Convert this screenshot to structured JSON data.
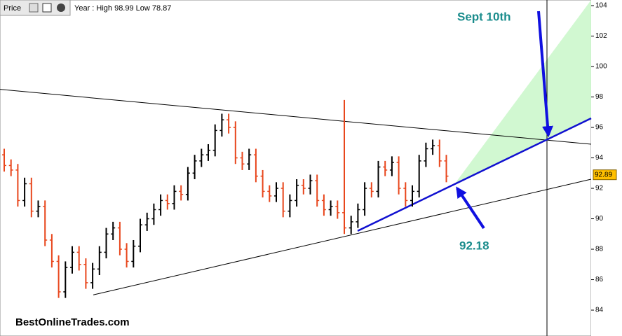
{
  "chart_data": {
    "type": "ohlc",
    "panel_label": "Price",
    "header": "Year : High 98.99 Low 78.87",
    "watermark": "BestOnlineTrades.com",
    "ylim": [
      82.3,
      104.37
    ],
    "yticks": [
      84,
      86,
      88,
      90,
      92,
      94,
      96,
      98,
      100,
      102,
      104
    ],
    "up_color": "#000000",
    "down_color": "#e8461c",
    "open": [
      94.2,
      93.5,
      93.2,
      91.2,
      92.3,
      90.5,
      90.8,
      88.6,
      87.2,
      85.2,
      86.8,
      87.8,
      87.0,
      85.8,
      86.7,
      87.8,
      89.0,
      89.4,
      88.0,
      87.2,
      88.2,
      89.6,
      90.0,
      90.6,
      91.2,
      91.0,
      91.8,
      91.6,
      93.0,
      93.8,
      94.2,
      94.5,
      95.8,
      96.5,
      96.0,
      94.0,
      93.6,
      94.2,
      92.8,
      91.8,
      91.5,
      92.0,
      90.5,
      91.2,
      92.2,
      92.0,
      92.5,
      91.2,
      90.6,
      90.8,
      90.4,
      89.4,
      89.8,
      90.6,
      92.0,
      91.8,
      93.4,
      93.2,
      93.7,
      92.0,
      91.2,
      91.8,
      93.8,
      94.6,
      94.8,
      93.8
    ],
    "high": [
      94.6,
      93.9,
      93.6,
      92.7,
      92.7,
      91.2,
      91.2,
      89.0,
      87.6,
      87.2,
      88.2,
      88.2,
      87.4,
      87.1,
      88.2,
      89.4,
      89.8,
      89.8,
      88.4,
      88.6,
      90.0,
      90.4,
      91.0,
      91.6,
      91.6,
      92.2,
      92.2,
      93.4,
      94.2,
      94.6,
      94.9,
      96.2,
      96.9,
      96.9,
      96.4,
      94.4,
      94.6,
      94.6,
      93.2,
      92.2,
      92.4,
      92.4,
      91.6,
      92.6,
      92.6,
      92.9,
      92.9,
      91.6,
      91.2,
      91.2,
      97.8,
      90.2,
      91.0,
      92.4,
      92.4,
      93.8,
      93.8,
      94.1,
      94.1,
      92.4,
      92.2,
      94.2,
      95.0,
      95.2,
      95.2,
      94.2
    ],
    "low": [
      93.1,
      92.8,
      90.8,
      90.8,
      90.1,
      90.1,
      88.2,
      86.8,
      84.8,
      84.8,
      86.4,
      86.6,
      85.4,
      85.4,
      86.3,
      87.4,
      88.6,
      87.6,
      86.8,
      86.8,
      87.8,
      89.2,
      89.6,
      90.2,
      90.6,
      90.6,
      91.2,
      91.2,
      92.6,
      93.4,
      93.8,
      94.1,
      95.4,
      95.6,
      93.6,
      93.2,
      93.2,
      92.4,
      91.4,
      91.1,
      91.1,
      90.1,
      90.1,
      90.8,
      91.6,
      91.6,
      90.8,
      90.2,
      90.2,
      90.0,
      89.0,
      89.0,
      89.4,
      90.2,
      91.4,
      91.4,
      92.8,
      92.8,
      91.6,
      90.8,
      90.8,
      91.4,
      93.4,
      94.2,
      93.4,
      92.4
    ],
    "close": [
      93.5,
      93.2,
      91.2,
      92.3,
      90.5,
      90.8,
      88.6,
      87.2,
      85.2,
      86.8,
      87.8,
      87.0,
      85.8,
      86.7,
      87.8,
      89.0,
      89.4,
      88.0,
      87.2,
      88.2,
      89.6,
      90.0,
      90.6,
      91.2,
      91.0,
      91.8,
      91.6,
      93.0,
      93.8,
      94.2,
      94.5,
      95.8,
      96.5,
      96.0,
      94.0,
      93.6,
      94.2,
      92.8,
      91.8,
      91.5,
      92.0,
      90.5,
      91.2,
      92.2,
      92.0,
      92.5,
      91.2,
      90.6,
      90.8,
      90.4,
      89.4,
      89.8,
      90.6,
      92.0,
      91.8,
      93.4,
      93.2,
      93.7,
      92.0,
      91.2,
      91.8,
      93.8,
      94.6,
      94.8,
      93.8,
      92.8
    ],
    "last_price": 92.89,
    "trendlines": [
      {
        "color": "#000000",
        "values": [
          98.5,
          94.9
        ]
      },
      {
        "color": "#000000",
        "values": [
          85.0,
          92.6
        ]
      },
      {
        "color": "#1010d0",
        "values": [
          89.2,
          96.6
        ]
      }
    ],
    "annotations": [
      {
        "text": "Sept 10th",
        "color": "#1a8c8c"
      },
      {
        "text": "92.18",
        "color": "#1a8c8c",
        "value": 92.18
      }
    ]
  }
}
